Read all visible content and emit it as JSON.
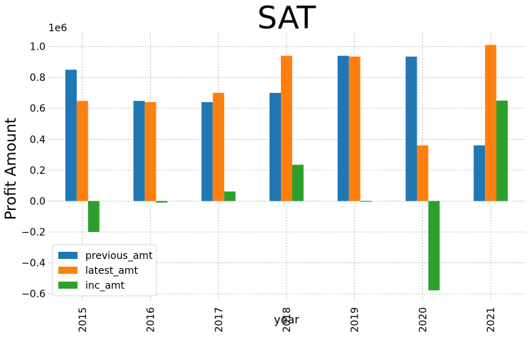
{
  "chart_data": {
    "type": "bar",
    "title": "SAT",
    "xlabel": "year",
    "ylabel": "Profit Amount",
    "y_offset_label": "1e6",
    "categories": [
      "2015",
      "2016",
      "2017",
      "2018",
      "2019",
      "2020",
      "2021"
    ],
    "series": [
      {
        "name": "previous_amt",
        "color": "#1f77b4",
        "values": [
          850000,
          648000,
          640000,
          700000,
          940000,
          935000,
          360000
        ]
      },
      {
        "name": "latest_amt",
        "color": "#ff7f0e",
        "values": [
          648000,
          640000,
          700000,
          940000,
          935000,
          360000,
          1010000
        ]
      },
      {
        "name": "inc_amt",
        "color": "#2ca02c",
        "values": [
          -200000,
          -10000,
          62000,
          235000,
          -5000,
          -578000,
          650000
        ]
      }
    ],
    "ylim": [
      -0.65,
      1.09
    ],
    "yticks": [
      "1.0",
      "0.8",
      "0.6",
      "0.4",
      "0.2",
      "0.0",
      "−0.2",
      "−0.4",
      "−0.6"
    ],
    "ytick_values": [
      1.0,
      0.8,
      0.6,
      0.4,
      0.2,
      0.0,
      -0.2,
      -0.4,
      -0.6
    ],
    "grid": true,
    "legend_position": "lower-left"
  }
}
